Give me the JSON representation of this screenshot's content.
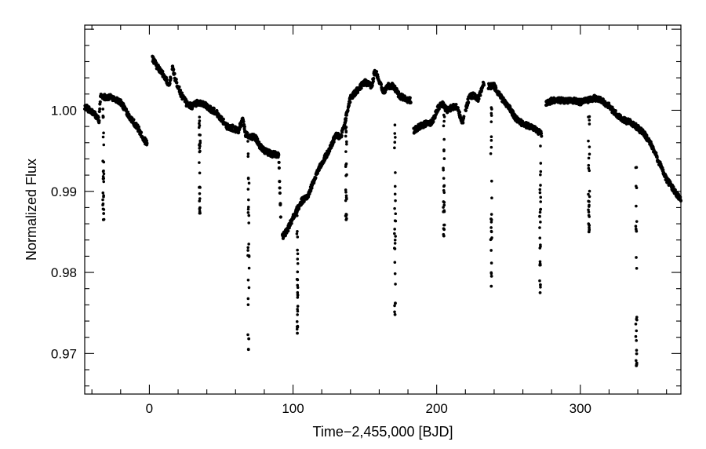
{
  "chart_data": {
    "type": "scatter",
    "title": "",
    "xlabel": "Time−2,455,000 [BJD]",
    "ylabel": "Normalized Flux",
    "xlim": [
      -45,
      370
    ],
    "ylim": [
      0.965,
      1.0105
    ],
    "xticks": [
      0,
      100,
      200,
      300
    ],
    "xtick_labels": [
      "0",
      "100",
      "200",
      "300"
    ],
    "yticks": [
      0.97,
      0.98,
      0.99,
      1.0
    ],
    "ytick_labels": [
      "0.97",
      "0.98",
      "0.99",
      "1.00"
    ],
    "grid": false,
    "legend": "none",
    "marker_color": "#000000",
    "series": [
      {
        "description": "stellar baseline flux",
        "x": [
          -45,
          -38,
          -35,
          -34,
          -30,
          -26,
          -20,
          -14,
          -8,
          -3,
          -1,
          2,
          5,
          8,
          11,
          14,
          16,
          18,
          22,
          26,
          30,
          34,
          38,
          42,
          46,
          50,
          54,
          58,
          62,
          65,
          67,
          70,
          74,
          76,
          80,
          85,
          90,
          92,
          96,
          100,
          103,
          106,
          110,
          115,
          120,
          125,
          128,
          130,
          133,
          136,
          140,
          145,
          150,
          155,
          157,
          160,
          163,
          166,
          170,
          174,
          178,
          182,
          184,
          188,
          192,
          196,
          198,
          201,
          204,
          207,
          210,
          214,
          218,
          220,
          223,
          226,
          229,
          233,
          236,
          240,
          245,
          250,
          255,
          260,
          265,
          270,
          273,
          276,
          280,
          285,
          290,
          295,
          300,
          305,
          310,
          315,
          320,
          325,
          330,
          335,
          340,
          345,
          350,
          355,
          360,
          365,
          370
        ],
        "y": [
          1.0005,
          0.9995,
          0.9988,
          1.0018,
          1.0016,
          1.0016,
          1.001,
          0.9993,
          0.9978,
          0.9962,
          0.9958,
          1.0065,
          1.0055,
          1.0048,
          1.004,
          1.003,
          1.0054,
          1.0038,
          1.002,
          1.0008,
          1.0005,
          1.001,
          1.0008,
          1.0002,
          0.9998,
          0.999,
          0.998,
          0.9978,
          0.9975,
          0.999,
          0.997,
          0.9968,
          0.9966,
          0.9958,
          0.995,
          0.9946,
          0.9945,
          0.9842,
          0.9852,
          0.9868,
          0.9878,
          0.9888,
          0.9893,
          0.9915,
          0.9935,
          0.995,
          0.9962,
          0.997,
          0.9966,
          0.9985,
          1.0015,
          1.0025,
          1.0035,
          1.003,
          1.005,
          1.0035,
          1.0022,
          1.003,
          1.003,
          1.0018,
          1.0014,
          1.0012,
          0.9975,
          0.998,
          0.9983,
          0.9985,
          0.999,
          1.0003,
          1.0008,
          1.0,
          1.0003,
          1.0005,
          0.9985,
          1.0,
          1.0018,
          1.0018,
          1.0014,
          1.0035,
          1.003,
          1.003,
          1.0015,
          1.0005,
          0.999,
          0.9983,
          0.998,
          0.9975,
          0.997,
          1.0008,
          1.0012,
          1.0012,
          1.0012,
          1.0012,
          1.001,
          1.0012,
          1.0015,
          1.0012,
          1.0005,
          0.9995,
          0.9988,
          0.9985,
          0.9978,
          0.997,
          0.9955,
          0.9935,
          0.9915,
          0.9902,
          0.989
        ]
      },
      {
        "description": "transit events",
        "transits": [
          {
            "t": -32,
            "depth_min": 0.9865
          },
          {
            "t": 35,
            "depth_min": 0.9873
          },
          {
            "t": 69,
            "depth_min": 0.9705
          },
          {
            "t": 103,
            "depth_min": 0.9725
          },
          {
            "t": 137,
            "depth_min": 0.9865
          },
          {
            "t": 171,
            "depth_min": 0.9748
          },
          {
            "t": 205,
            "depth_min": 0.9845
          },
          {
            "t": 238,
            "depth_min": 0.9783
          },
          {
            "t": 272,
            "depth_min": 0.9775
          },
          {
            "t": 306,
            "depth_min": 0.985
          },
          {
            "t": 339,
            "depth_min": 0.9685
          }
        ]
      }
    ]
  }
}
